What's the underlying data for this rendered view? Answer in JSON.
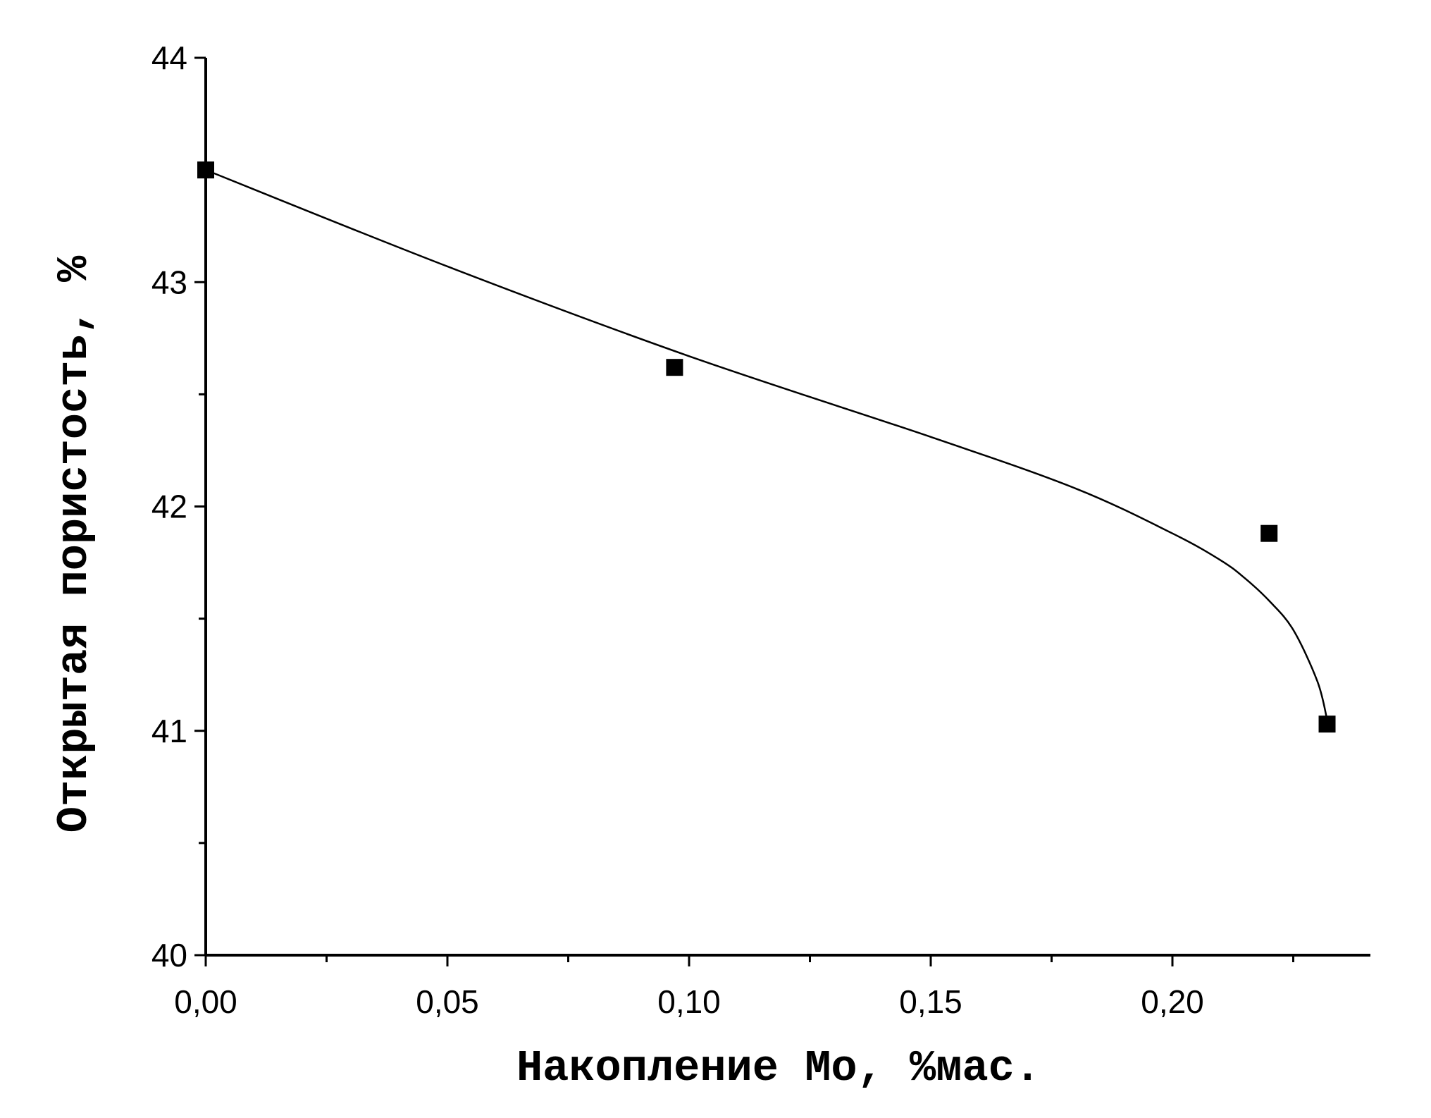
{
  "chart_data": {
    "type": "scatter",
    "title": "",
    "xlabel": "Накопление Mo, %мас.",
    "ylabel": "Открытая пористость, %",
    "xlim": [
      0,
      0.24
    ],
    "ylim": [
      40,
      44
    ],
    "x_ticks": [
      {
        "value": 0.0,
        "label": "0,00"
      },
      {
        "value": 0.05,
        "label": "0,05"
      },
      {
        "value": 0.1,
        "label": "0,10"
      },
      {
        "value": 0.15,
        "label": "0,15"
      },
      {
        "value": 0.2,
        "label": "0,20"
      }
    ],
    "y_ticks": [
      {
        "value": 40,
        "label": "40"
      },
      {
        "value": 41,
        "label": "41"
      },
      {
        "value": 42,
        "label": "42"
      },
      {
        "value": 43,
        "label": "43"
      },
      {
        "value": 44,
        "label": "44"
      }
    ],
    "grid": false,
    "series": [
      {
        "kind": "points",
        "marker": "square",
        "color": "#000000",
        "x": [
          0.0,
          0.097,
          0.22,
          0.232
        ],
        "y": [
          43.5,
          42.62,
          41.88,
          41.03
        ]
      },
      {
        "kind": "fit-curve",
        "color": "#000000",
        "x": [
          0.0,
          0.05,
          0.1,
          0.15,
          0.18,
          0.2,
          0.21,
          0.215,
          0.22,
          0.225,
          0.23,
          0.232
        ],
        "y": [
          43.5,
          43.07,
          42.67,
          42.31,
          42.08,
          41.88,
          41.76,
          41.68,
          41.58,
          41.45,
          41.22,
          41.05
        ]
      }
    ]
  }
}
